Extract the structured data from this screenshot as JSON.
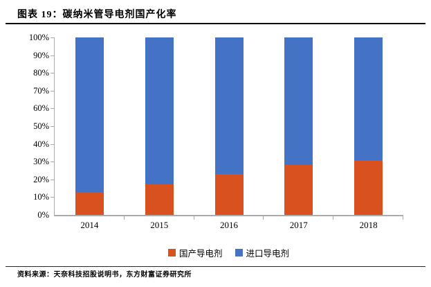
{
  "figure": {
    "title": "图表 19：碳纳米管导电剂国产化率",
    "source": "资料来源：天奈科技招股说明书，东方财富证券研究所"
  },
  "chart_data": {
    "type": "bar",
    "stacked": true,
    "title": "碳纳米管导电剂国产化率",
    "categories": [
      "2014",
      "2015",
      "2016",
      "2017",
      "2018"
    ],
    "series": [
      {
        "name": "国产导电剂",
        "color": "#D9511E",
        "values": [
          13,
          17,
          23,
          28,
          31
        ]
      },
      {
        "name": "进口导电剂",
        "color": "#4472C4",
        "values": [
          87,
          83,
          77,
          72,
          69
        ]
      }
    ],
    "ylim": [
      0,
      100
    ],
    "y_ticks": [
      "0%",
      "10%",
      "20%",
      "30%",
      "40%",
      "50%",
      "60%",
      "70%",
      "80%",
      "90%",
      "100%"
    ],
    "grid": false,
    "legend_position": "bottom",
    "axis_color": "#ABABAB"
  }
}
